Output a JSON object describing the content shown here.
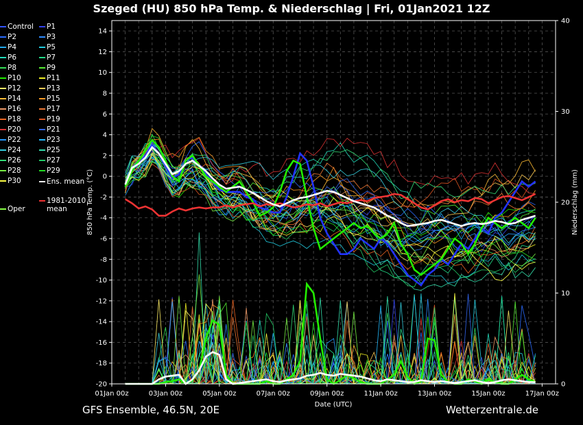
{
  "title": "Szeged  (HU)  850 hPa Temp. & Niederschlag | Fri, 01Jan2021 12Z",
  "footer_left": "GFS Ensemble, 46.5N, 20E",
  "footer_right": "Wetterzentrale.de",
  "legend": [
    {
      "label": "Control",
      "color": "#3355ff"
    },
    {
      "label": "P1",
      "color": "#3344ee"
    },
    {
      "label": "P2",
      "color": "#2a6cff"
    },
    {
      "label": "P3",
      "color": "#2f8cff"
    },
    {
      "label": "P4",
      "color": "#22aaee"
    },
    {
      "label": "P5",
      "color": "#22cce0"
    },
    {
      "label": "P6",
      "color": "#22ddbb"
    },
    {
      "label": "P7",
      "color": "#22dd88"
    },
    {
      "label": "P8",
      "color": "#33dd55"
    },
    {
      "label": "P9",
      "color": "#55ee33"
    },
    {
      "label": "P10",
      "color": "#22ee00"
    },
    {
      "label": "P11",
      "color": "#eeee22"
    },
    {
      "label": "P12",
      "color": "#ffee66"
    },
    {
      "label": "P13",
      "color": "#ffcc55"
    },
    {
      "label": "P14",
      "color": "#ffbb33"
    },
    {
      "label": "P15",
      "color": "#ff9922"
    },
    {
      "label": "P16",
      "color": "#ee9966"
    },
    {
      "label": "P17",
      "color": "#ee7733"
    },
    {
      "label": "P18",
      "color": "#ee6622"
    },
    {
      "label": "P19",
      "color": "#dd5522"
    },
    {
      "label": "P20",
      "color": "#dd3333"
    },
    {
      "label": "P21",
      "color": "#3366ee"
    },
    {
      "label": "P22",
      "color": "#2299ff"
    },
    {
      "label": "P23",
      "color": "#22bbff"
    },
    {
      "label": "P24",
      "color": "#33ccdd"
    },
    {
      "label": "P25",
      "color": "#33ddaa"
    },
    {
      "label": "P26",
      "color": "#33dd77"
    },
    {
      "label": "P27",
      "color": "#22cc66"
    },
    {
      "label": "P28",
      "color": "#77ee44"
    },
    {
      "label": "P29",
      "color": "#22dd22"
    },
    {
      "label": "P30",
      "color": "#ffff44"
    },
    {
      "label": "Ens. mean",
      "color": "#ffffff"
    },
    {
      "label": "Oper",
      "color": "#88ff44"
    },
    {
      "label": "1981-2010 mean",
      "color": "#ee3333"
    }
  ],
  "chart_data": {
    "type": "line",
    "xlabel": "Date (UTC)",
    "ylabel": "850 hPa Temp. (°C)",
    "ylabel_right": "Niederschlag (mm)",
    "ylim": [
      -20,
      15
    ],
    "ylim_right": [
      0,
      40
    ],
    "yticks": [
      14,
      12,
      10,
      8,
      6,
      4,
      2,
      0,
      -2,
      -4,
      -6,
      -8,
      -10,
      -12,
      -14,
      -16,
      -18,
      -20
    ],
    "yticks_right": [
      40,
      30,
      20,
      10,
      0
    ],
    "x_range_days": [
      0,
      16.5
    ],
    "xticks": [
      {
        "day": 0,
        "label": "01Jan 00z"
      },
      {
        "day": 2,
        "label": "03Jan 00z"
      },
      {
        "day": 4,
        "label": "05Jan 00z"
      },
      {
        "day": 6,
        "label": "07Jan 00z"
      },
      {
        "day": 8,
        "label": "09Jan 00z"
      },
      {
        "day": 10,
        "label": "11Jan 00z"
      },
      {
        "day": 12,
        "label": "13Jan 00z"
      },
      {
        "day": 14,
        "label": "15Jan 00z"
      },
      {
        "day": 16,
        "label": "17Jan 00z"
      }
    ],
    "grid": true,
    "step_days": 0.25,
    "start_day": 0.5,
    "ens_mean_temp": [
      -0.8,
      0.8,
      1.2,
      1.8,
      2.8,
      2.2,
      1.2,
      0.2,
      0.5,
      1.2,
      1.5,
      1.0,
      0.5,
      -0.2,
      -0.8,
      -1.2,
      -1.1,
      -1.0,
      -1.3,
      -1.6,
      -2.0,
      -2.4,
      -2.7,
      -2.9,
      -2.6,
      -2.3,
      -2.1,
      -2.0,
      -1.8,
      -1.6,
      -1.4,
      -1.5,
      -1.8,
      -2.1,
      -2.4,
      -2.6,
      -2.8,
      -3.0,
      -3.4,
      -3.8,
      -4.1,
      -4.5,
      -4.8,
      -4.7,
      -4.6,
      -4.5,
      -4.3,
      -4.2,
      -4.4,
      -4.6,
      -4.8,
      -4.6,
      -4.5,
      -4.6,
      -4.5,
      -4.3,
      -4.4,
      -4.6,
      -4.5,
      -4.2,
      -4.0,
      -3.8
    ],
    "climate_mean_temp": [
      -2.2,
      -2.6,
      -3.1,
      -2.9,
      -3.2,
      -3.8,
      -3.8,
      -3.4,
      -3.1,
      -3.3,
      -3.1,
      -3.0,
      -3.1,
      -3.0,
      -3.0,
      -2.8,
      -3.0,
      -2.8,
      -2.7,
      -2.6,
      -2.9,
      -2.7,
      -2.8,
      -2.6,
      -2.8,
      -3.0,
      -2.9,
      -2.7,
      -2.8,
      -2.6,
      -2.9,
      -2.7,
      -2.5,
      -2.6,
      -2.4,
      -2.3,
      -2.4,
      -2.1,
      -2.0,
      -1.9,
      -1.7,
      -1.8,
      -2.2,
      -2.6,
      -3.0,
      -3.2,
      -2.8,
      -2.4,
      -2.2,
      -2.5,
      -2.3,
      -2.4,
      -2.1,
      -2.2,
      -2.6,
      -2.3,
      -2.0,
      -1.9,
      -2.1,
      -2.3,
      -2.0,
      -1.7
    ],
    "oper_temp": [
      -1.0,
      0.5,
      1.5,
      2.5,
      3.5,
      2.8,
      1.5,
      0.0,
      -0.5,
      1.5,
      2.0,
      1.0,
      0.0,
      -0.5,
      -1.0,
      -1.5,
      -1.0,
      -0.5,
      -1.5,
      -2.5,
      -3.8,
      -3.5,
      -3.0,
      -1.5,
      0.5,
      1.5,
      1.2,
      -2.0,
      -5.0,
      -7.0,
      -6.5,
      -6.0,
      -5.5,
      -5.0,
      -4.5,
      -5.0,
      -4.8,
      -5.5,
      -6.0,
      -5.5,
      -4.5,
      -6.5,
      -7.5,
      -9.0,
      -9.5,
      -9.0,
      -8.5,
      -8.0,
      -7.0,
      -6.0,
      -6.5,
      -7.5,
      -6.5,
      -5.0,
      -4.0,
      -4.5,
      -5.0,
      -4.5,
      -4.0,
      -4.5,
      -5.0,
      -4.0
    ],
    "control_temp": [
      -0.8,
      0.6,
      1.2,
      2.0,
      3.0,
      2.2,
      1.0,
      -0.2,
      0.2,
      1.5,
      1.8,
      1.0,
      0.2,
      -0.5,
      -1.3,
      -1.5,
      -1.5,
      -1.5,
      -2.0,
      -2.2,
      -3.0,
      -3.2,
      -3.5,
      -3.5,
      -2.0,
      0.0,
      2.2,
      1.5,
      -1.0,
      -4.0,
      -5.5,
      -6.5,
      -7.5,
      -7.5,
      -7.0,
      -6.0,
      -6.5,
      -7.0,
      -6.0,
      -6.5,
      -7.5,
      -8.5,
      -9.5,
      -10.0,
      -10.5,
      -9.5,
      -9.0,
      -8.0,
      -8.5,
      -7.5,
      -6.5,
      -7.0,
      -6.0,
      -5.0,
      -5.5,
      -4.0,
      -3.5,
      -2.5,
      -1.5,
      -0.5,
      -1.0,
      -0.5
    ],
    "ens_mean_precip": [
      0,
      0,
      0,
      0,
      0,
      0.5,
      0.8,
      0.9,
      1.0,
      0,
      0.5,
      1.5,
      3.0,
      3.5,
      3.2,
      0.5,
      0,
      0.1,
      0.2,
      0.3,
      0.4,
      0.5,
      0.3,
      0.2,
      0.4,
      0.5,
      0.6,
      0.9,
      1.0,
      1.2,
      1.0,
      0.9,
      1.1,
      1.0,
      0.9,
      0.8,
      0.6,
      0.4,
      0.3,
      0.5,
      0.4,
      0.3,
      0.2,
      0.2,
      0.4,
      0.3,
      0.2,
      0.3,
      0.2,
      0.1,
      0.2,
      0.3,
      0.4,
      0.2,
      0.1,
      0.2,
      0.4,
      0.5,
      0.4,
      0.3,
      0.2,
      0.2
    ],
    "oper_precip": [
      0,
      0,
      0,
      0,
      0,
      0,
      0.2,
      0.3,
      0.5,
      0,
      0.4,
      1.5,
      5.0,
      7.0,
      6.5,
      1.0,
      0,
      0,
      0,
      0,
      0,
      0.3,
      0,
      0,
      0.5,
      1.0,
      2.5,
      11.0,
      10.0,
      5.0,
      0.5,
      0,
      0.4,
      1.0,
      0.6,
      0.2,
      0,
      0,
      0,
      0.5,
      1.0,
      2.5,
      0.8,
      0,
      0.3,
      5.0,
      4.8,
      1.0,
      0.2,
      0,
      0,
      0.5,
      0.3,
      0,
      0.5,
      0.2,
      0,
      0,
      0.5,
      1.0,
      0.5,
      0.2
    ]
  }
}
